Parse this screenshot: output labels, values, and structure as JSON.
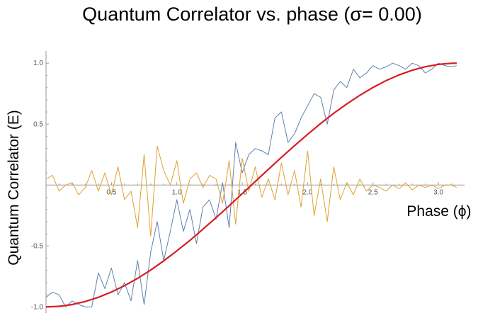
{
  "chart_data": {
    "type": "line",
    "title": "Quantum Correlator vs. phase (σ= 0.00)",
    "xlabel": "Phase (ϕ)",
    "ylabel": "Quantum Correlator (E)",
    "xlim": [
      0,
      3.2
    ],
    "ylim": [
      -1.05,
      1.1
    ],
    "xticks": [
      0.5,
      1.0,
      1.5,
      2.0,
      2.5,
      3.0
    ],
    "xtick_labels": [
      "0.5",
      "1.0",
      "1.5",
      "2.0",
      "2.5",
      "3.0"
    ],
    "yticks": [
      -1.0,
      -0.5,
      0.5,
      1.0
    ],
    "ytick_labels": [
      "-1.0",
      "-0.5",
      "0.5",
      "1.0"
    ],
    "grid": false,
    "legend": "none",
    "colors": {
      "measured": "#5e81ac",
      "orthogonal": "#e0a030",
      "theory": "#d81c24"
    },
    "series": [
      {
        "x": [
          0.0,
          0.05,
          0.1,
          0.15,
          0.2,
          0.25,
          0.3,
          0.35,
          0.4,
          0.45,
          0.5,
          0.55,
          0.6,
          0.65,
          0.7,
          0.75,
          0.8,
          0.85,
          0.9,
          0.95,
          1.0,
          1.05,
          1.1,
          1.15,
          1.2,
          1.25,
          1.3,
          1.35,
          1.4,
          1.45,
          1.5,
          1.55,
          1.6,
          1.65,
          1.7,
          1.75,
          1.8,
          1.85,
          1.9,
          1.95,
          2.0,
          2.05,
          2.1,
          2.15,
          2.2,
          2.25,
          2.3,
          2.35,
          2.4,
          2.45,
          2.5,
          2.55,
          2.6,
          2.65,
          2.7,
          2.75,
          2.8,
          2.85,
          2.9,
          2.95,
          3.0,
          3.05,
          3.1,
          3.14
        ],
        "values": [
          -0.92,
          -0.88,
          -0.9,
          -1.0,
          -0.95,
          -0.98,
          -1.0,
          -1.0,
          -0.72,
          -0.85,
          -0.68,
          -0.9,
          -0.8,
          -0.95,
          -0.62,
          -0.98,
          -0.55,
          -0.3,
          -0.62,
          -0.38,
          -0.12,
          -0.38,
          -0.2,
          -0.48,
          -0.18,
          -0.12,
          -0.28,
          0.02,
          -0.35,
          0.35,
          0.1,
          0.25,
          0.3,
          0.28,
          0.25,
          0.55,
          0.6,
          0.35,
          0.42,
          0.55,
          0.65,
          0.75,
          0.72,
          0.5,
          0.78,
          0.85,
          0.8,
          0.95,
          0.88,
          0.92,
          0.98,
          0.95,
          0.97,
          1.0,
          0.98,
          0.95,
          1.0,
          0.98,
          0.92,
          0.95,
          1.0,
          0.98,
          0.97,
          0.98
        ]
      },
      {
        "x": [
          0.0,
          0.05,
          0.1,
          0.15,
          0.2,
          0.25,
          0.3,
          0.35,
          0.4,
          0.45,
          0.5,
          0.55,
          0.6,
          0.65,
          0.7,
          0.75,
          0.8,
          0.85,
          0.9,
          0.95,
          1.0,
          1.05,
          1.1,
          1.15,
          1.2,
          1.25,
          1.3,
          1.35,
          1.4,
          1.45,
          1.5,
          1.55,
          1.6,
          1.65,
          1.7,
          1.75,
          1.8,
          1.85,
          1.9,
          1.95,
          2.0,
          2.05,
          2.1,
          2.15,
          2.2,
          2.25,
          2.3,
          2.35,
          2.4,
          2.45,
          2.5,
          2.55,
          2.6,
          2.65,
          2.7,
          2.75,
          2.8,
          2.85,
          2.9,
          2.95,
          3.0,
          3.05,
          3.1,
          3.14
        ],
        "values": [
          0.05,
          0.08,
          -0.05,
          0.0,
          0.02,
          -0.08,
          -0.02,
          0.12,
          -0.05,
          0.1,
          -0.08,
          0.15,
          -0.12,
          -0.05,
          -0.35,
          0.25,
          -0.42,
          0.32,
          0.12,
          0.0,
          0.2,
          -0.15,
          0.05,
          0.1,
          -0.02,
          0.08,
          0.05,
          -0.15,
          0.2,
          -0.32,
          0.22,
          -0.05,
          0.15,
          -0.1,
          0.05,
          -0.12,
          0.18,
          -0.08,
          0.12,
          -0.18,
          0.28,
          -0.25,
          0.05,
          -0.3,
          0.15,
          -0.12,
          0.02,
          -0.08,
          0.05,
          -0.05,
          0.0,
          -0.02,
          -0.05,
          0.0,
          -0.03,
          0.02,
          -0.04,
          0.0,
          -0.02,
          0.0,
          -0.03,
          0.0,
          0.0,
          -0.02
        ]
      },
      {
        "x": [
          0.0,
          0.1,
          0.2,
          0.3,
          0.4,
          0.5,
          0.6,
          0.7,
          0.8,
          0.9,
          1.0,
          1.1,
          1.2,
          1.3,
          1.4,
          1.5,
          1.6,
          1.7,
          1.8,
          1.9,
          2.0,
          2.1,
          2.2,
          2.3,
          2.4,
          2.5,
          2.6,
          2.7,
          2.8,
          2.9,
          3.0,
          3.1,
          3.14
        ],
        "values": [
          -1.0,
          -0.995,
          -0.98,
          -0.955,
          -0.921,
          -0.878,
          -0.825,
          -0.765,
          -0.697,
          -0.622,
          -0.54,
          -0.454,
          -0.362,
          -0.267,
          -0.17,
          -0.071,
          0.029,
          0.129,
          0.227,
          0.323,
          0.416,
          0.505,
          0.589,
          0.666,
          0.737,
          0.801,
          0.857,
          0.904,
          0.942,
          0.971,
          0.99,
          0.999,
          1.0
        ]
      }
    ]
  }
}
